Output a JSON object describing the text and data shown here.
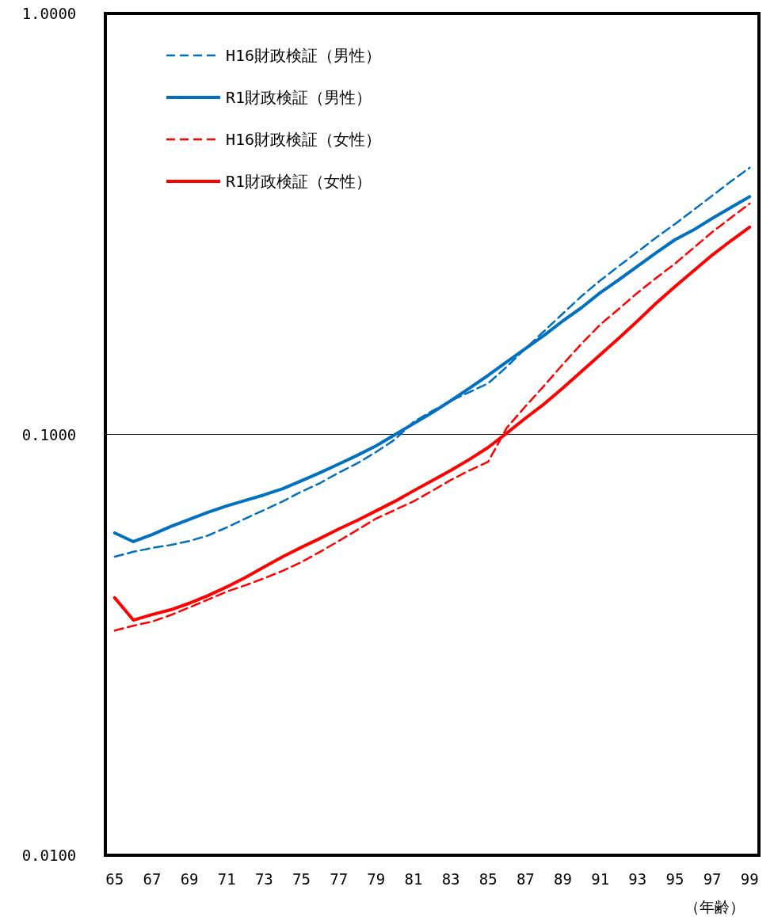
{
  "chart_data": {
    "type": "line",
    "xlabel": "（年齢）",
    "categories": [
      "65",
      null,
      "67",
      null,
      "69",
      null,
      "71",
      null,
      "73",
      null,
      "75",
      null,
      "77",
      null,
      "79",
      null,
      "81",
      null,
      "83",
      null,
      "85",
      null,
      "87",
      null,
      "89",
      null,
      "91",
      null,
      "93",
      null,
      "95",
      null,
      "97",
      null,
      "99"
    ],
    "series": [
      {
        "name": "H16財政検証（男性）",
        "color": "#0070c0",
        "line_style": "dashed",
        "values": [
          0.0512,
          0.0526,
          0.0537,
          0.0546,
          0.0558,
          0.0575,
          0.0601,
          0.0631,
          0.0661,
          0.0693,
          0.0731,
          0.0766,
          0.0811,
          0.0854,
          0.0908,
          0.0972,
          0.107,
          0.1136,
          0.1202,
          0.126,
          0.1322,
          0.1448,
          0.16,
          0.176,
          0.1936,
          0.213,
          0.232,
          0.251,
          0.2715,
          0.2935,
          0.316,
          0.3414,
          0.369,
          0.399,
          0.43
        ]
      },
      {
        "name": "R1財政検証（男性）",
        "color": "#0070c0",
        "line_style": "solid",
        "values": [
          0.0583,
          0.0556,
          0.0578,
          0.0604,
          0.0628,
          0.0653,
          0.0676,
          0.0697,
          0.0718,
          0.0743,
          0.0776,
          0.0811,
          0.085,
          0.0892,
          0.0939,
          0.0998,
          0.106,
          0.1126,
          0.1202,
          0.1288,
          0.1381,
          0.1487,
          0.16,
          0.172,
          0.186,
          0.2,
          0.217,
          0.233,
          0.251,
          0.27,
          0.29,
          0.306,
          0.326,
          0.346,
          0.367
        ]
      },
      {
        "name": "H16財政検証（女性）",
        "color": "#ff0000",
        "line_style": "dashed",
        "values": [
          0.0342,
          0.0351,
          0.0359,
          0.0372,
          0.0388,
          0.0405,
          0.0423,
          0.0438,
          0.0455,
          0.0474,
          0.0497,
          0.0526,
          0.0558,
          0.0593,
          0.0631,
          0.0661,
          0.0693,
          0.0734,
          0.0779,
          0.0821,
          0.0861,
          0.1037,
          0.1166,
          0.1305,
          0.1467,
          0.1642,
          0.1823,
          0.1987,
          0.217,
          0.2353,
          0.2543,
          0.2773,
          0.3024,
          0.327,
          0.3534
        ]
      },
      {
        "name": "R1財政検証（女性）",
        "color": "#ff0000",
        "line_style": "solid",
        "values": [
          0.0409,
          0.0362,
          0.0373,
          0.0383,
          0.0397,
          0.0414,
          0.0434,
          0.0457,
          0.0484,
          0.0512,
          0.0539,
          0.0566,
          0.0596,
          0.0625,
          0.0658,
          0.0693,
          0.0734,
          0.0776,
          0.0821,
          0.0872,
          0.0931,
          0.1007,
          0.1093,
          0.1181,
          0.1288,
          0.1411,
          0.1546,
          0.1693,
          0.186,
          0.205,
          0.2243,
          0.2446,
          0.2667,
          0.2884,
          0.3105
        ]
      }
    ],
    "ylim": [
      0.01,
      1
    ],
    "yticks": [
      {
        "value": 0.01,
        "label": "0.0100"
      },
      {
        "value": 0.1,
        "label": "0.1000"
      },
      {
        "value": 1,
        "label": "1.0000"
      }
    ],
    "log": true,
    "grid": "y",
    "legend": "top left"
  }
}
